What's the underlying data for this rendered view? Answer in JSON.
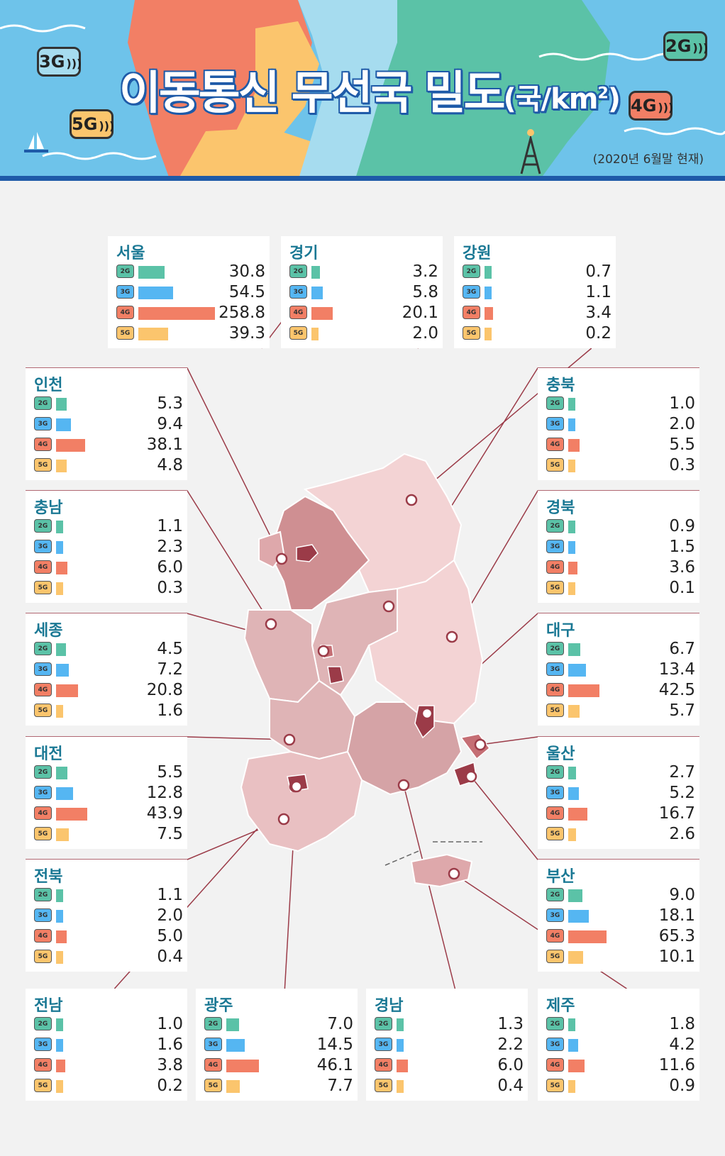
{
  "header": {
    "title_main": "이동통신 무선국 밀도",
    "title_unit_prefix": "(국/km",
    "title_unit_sup": "2",
    "title_unit_suffix": ")",
    "date_note": "(2020년 6월말 현재)",
    "badges": [
      "3G",
      "5G",
      "2G",
      "4G"
    ]
  },
  "legend": {
    "chip_labels": [
      "2G",
      "3G",
      "4G",
      "5G"
    ],
    "colors": {
      "2G": "#5bc2a7",
      "3G": "#55b6f2",
      "4G": "#f27f65",
      "5G": "#fbc56d"
    }
  },
  "chart_data": {
    "type": "bar",
    "categories": [
      "2G",
      "3G",
      "4G",
      "5G"
    ],
    "series": [
      {
        "name": "서울",
        "values": [
          30.8,
          54.5,
          258.8,
          39.3
        ]
      },
      {
        "name": "경기",
        "values": [
          3.2,
          5.8,
          20.1,
          2.0
        ]
      },
      {
        "name": "강원",
        "values": [
          0.7,
          1.1,
          3.4,
          0.2
        ]
      },
      {
        "name": "인천",
        "values": [
          5.3,
          9.4,
          38.1,
          4.8
        ]
      },
      {
        "name": "충북",
        "values": [
          1.0,
          2.0,
          5.5,
          0.3
        ]
      },
      {
        "name": "충남",
        "values": [
          1.1,
          2.3,
          6.0,
          0.3
        ]
      },
      {
        "name": "경북",
        "values": [
          0.9,
          1.5,
          3.6,
          0.1
        ]
      },
      {
        "name": "세종",
        "values": [
          4.5,
          7.2,
          20.8,
          1.6
        ]
      },
      {
        "name": "대구",
        "values": [
          6.7,
          13.4,
          42.5,
          5.7
        ]
      },
      {
        "name": "대전",
        "values": [
          5.5,
          12.8,
          43.9,
          7.5
        ]
      },
      {
        "name": "울산",
        "values": [
          2.7,
          5.2,
          16.7,
          2.6
        ]
      },
      {
        "name": "전북",
        "values": [
          1.1,
          2.0,
          5.0,
          0.4
        ]
      },
      {
        "name": "부산",
        "values": [
          9.0,
          18.1,
          65.3,
          10.1
        ]
      },
      {
        "name": "전남",
        "values": [
          1.0,
          1.6,
          3.8,
          0.2
        ]
      },
      {
        "name": "광주",
        "values": [
          7.0,
          14.5,
          46.1,
          7.7
        ]
      },
      {
        "name": "경남",
        "values": [
          1.3,
          2.2,
          6.0,
          0.4
        ]
      },
      {
        "name": "제주",
        "values": [
          1.8,
          4.2,
          11.6,
          0.9
        ]
      }
    ],
    "value_labels": [
      [
        "30.8",
        "54.5",
        "258.8",
        "39.3"
      ],
      [
        "3.2",
        "5.8",
        "20.1",
        "2.0"
      ],
      [
        "0.7",
        "1.1",
        "3.4",
        "0.2"
      ],
      [
        "5.3",
        "9.4",
        "38.1",
        "4.8"
      ],
      [
        "1.0",
        "2.0",
        "5.5",
        "0.3"
      ],
      [
        "1.1",
        "2.3",
        "6.0",
        "0.3"
      ],
      [
        "0.9",
        "1.5",
        "3.6",
        "0.1"
      ],
      [
        "4.5",
        "7.2",
        "20.8",
        "1.6"
      ],
      [
        "6.7",
        "13.4",
        "42.5",
        "5.7"
      ],
      [
        "5.5",
        "12.8",
        "43.9",
        "7.5"
      ],
      [
        "2.7",
        "5.2",
        "16.7",
        "2.6"
      ],
      [
        "1.1",
        "2.0",
        "5.0",
        "0.4"
      ],
      [
        "9.0",
        "18.1",
        "65.3",
        "10.1"
      ],
      [
        "1.0",
        "1.6",
        "3.8",
        "0.2"
      ],
      [
        "7.0",
        "14.5",
        "46.1",
        "7.7"
      ],
      [
        "1.3",
        "2.2",
        "6.0",
        "0.4"
      ],
      [
        "1.8",
        "4.2",
        "11.6",
        "0.9"
      ]
    ],
    "title": "",
    "xlabel": "",
    "ylabel": "",
    "legend": "none",
    "grid": false
  }
}
